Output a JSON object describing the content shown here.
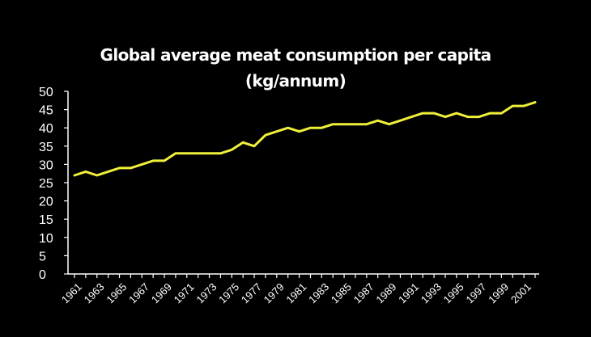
{
  "chart_data": {
    "type": "line",
    "title_line1": "Global average meat consumption per capita",
    "title_line2": "(kg/annum)",
    "xlabel": "",
    "ylabel": "",
    "ylim": [
      0,
      50
    ],
    "y_ticks": [
      0,
      5,
      10,
      15,
      20,
      25,
      30,
      35,
      40,
      45,
      50
    ],
    "x_tick_labels": [
      "1961",
      "1963",
      "1965",
      "1967",
      "1969",
      "1971",
      "1973",
      "1975",
      "1977",
      "1979",
      "1981",
      "1983",
      "1985",
      "1987",
      "1989",
      "1991",
      "1993",
      "1995",
      "1997",
      "1999",
      "2001"
    ],
    "grid": false,
    "legend": "none",
    "series": [
      {
        "x": [
          1961,
          1962,
          1963,
          1964,
          1965,
          1966,
          1967,
          1968,
          1969,
          1970,
          1971,
          1972,
          1973,
          1974,
          1975,
          1976,
          1977,
          1978,
          1979,
          1980,
          1981,
          1982,
          1983,
          1984,
          1985,
          1986,
          1987,
          1988,
          1989,
          1990,
          1991,
          1992,
          1993,
          1994,
          1995,
          1996,
          1997,
          1998,
          1999,
          2000,
          2001,
          2002
        ],
        "values": [
          27,
          28,
          27,
          28,
          29,
          29,
          30,
          31,
          31,
          33,
          33,
          33,
          33,
          33,
          34,
          36,
          35,
          38,
          39,
          40,
          39,
          40,
          40,
          41,
          41,
          41,
          41,
          42,
          41,
          42,
          43,
          44,
          44,
          43,
          44,
          43,
          43,
          44,
          44,
          46,
          46,
          47
        ]
      }
    ],
    "colors": {
      "background": "#000000",
      "line": "#f0ef3a",
      "axis": "#ffffff",
      "text": "#ffffff"
    }
  }
}
